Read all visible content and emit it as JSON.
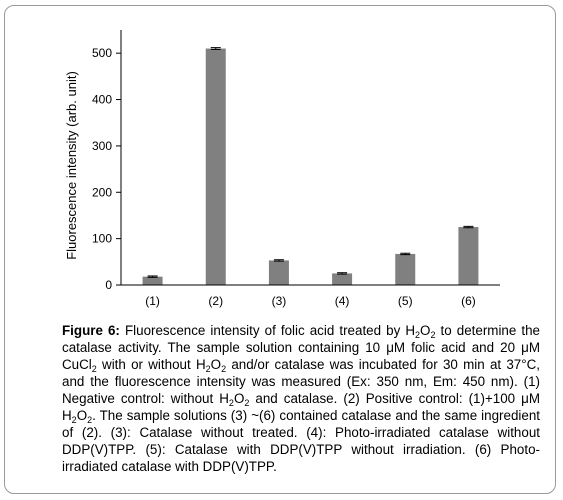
{
  "chart_data": {
    "type": "bar",
    "categories": [
      "(1)",
      "(2)",
      "(3)",
      "(4)",
      "(5)",
      "(6)"
    ],
    "values": [
      18,
      510,
      53,
      25,
      67,
      125
    ],
    "errors": [
      1.5,
      2,
      1.5,
      1.5,
      1.5,
      1.5
    ],
    "ylabel": "Fluorescence intensity (arb. unit)",
    "ylim": [
      0,
      550
    ],
    "yticks": [
      0,
      100,
      200,
      300,
      400,
      500
    ],
    "bar_color": "#808080",
    "grid": false
  },
  "caption": {
    "label": "Figure 6:",
    "t1": " Fluorescence intensity of folic acid treated by H",
    "t2": "2",
    "t3": "O",
    "t4": "2",
    "t5": " to determine the catalase activity. The sample solution containing 10 μM folic acid and 20 μM CuCl",
    "t6": "2",
    "t7": " with or without H",
    "t8": "2",
    "t9": "O",
    "t10": "2",
    "t11": " and/or catalase was incubated for 30 min at 37°C, and the fluorescence intensity was measured (Ex: 350 nm, Em: 450 nm). (1) Negative control: without H",
    "t12": "2",
    "t13": "O",
    "t14": "2",
    "t15": " and catalase. (2) Positive control: (1)+100 μM H",
    "t16": "2",
    "t17": "O",
    "t18": "2",
    "t19": ". The sample solutions (3) ~(6) contained catalase and the same ingredient of (2). (3): Catalase without treated. (4): Photo-irradiated catalase without DDP(V)TPP. (5): Catalase with DDP(V)TPP without irradiation. (6) Photo-irradiated catalase with DDP(V)TPP."
  }
}
